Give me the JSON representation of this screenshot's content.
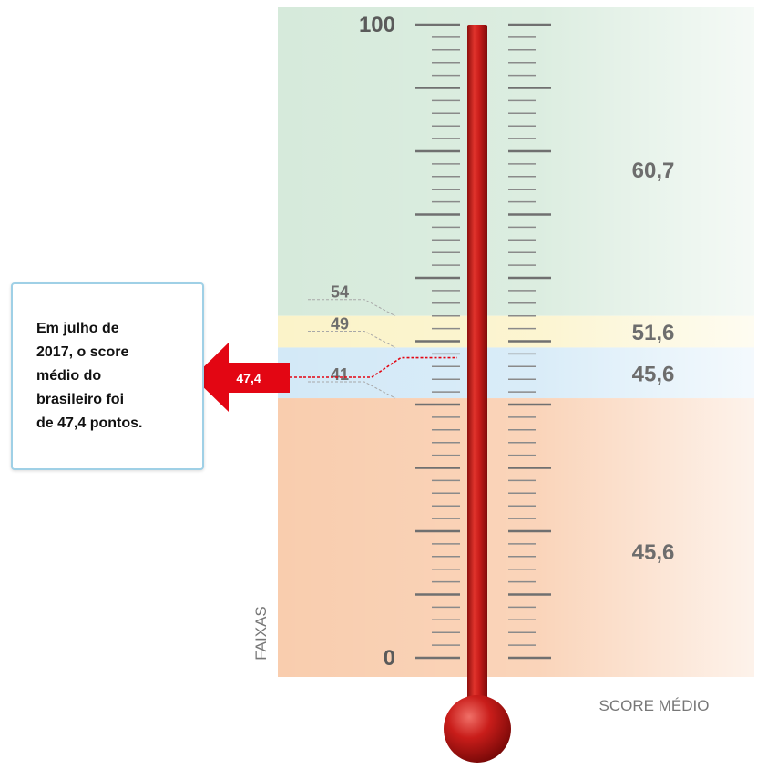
{
  "callout": {
    "text": "Em julho de\n2017, o score\nmédio do\nbrasileiro foi\nde 47,4 pontos."
  },
  "colors": {
    "band_green": "#d6eadb",
    "band_yellow": "#fbf3c9",
    "band_blue": "#d3e9f7",
    "band_orange": "#f9cdae",
    "thermometer_red": "#c91d1a",
    "marker_red": "#e30613",
    "label_gray": "#6d6d6d"
  },
  "chart_data": {
    "type": "thermometer",
    "scale": {
      "min": 0,
      "max": 100
    },
    "scale_labels": {
      "min": "0",
      "max": "100"
    },
    "xlabel": "FAIXAS",
    "ylabel": "SCORE MÉDIO",
    "bands": [
      {
        "from": 54,
        "to": 100,
        "score_medio": "60,7",
        "color": "#d6eadb"
      },
      {
        "from": 49,
        "to": 54,
        "score_medio": "51,6",
        "color": "#fbf3c9"
      },
      {
        "from": 41,
        "to": 49,
        "score_medio": "45,6",
        "color": "#d3e9f7"
      },
      {
        "from": 0,
        "to": 41,
        "score_medio": "45,6",
        "color": "#f9cdae"
      }
    ],
    "thresholds": [
      {
        "value": 54,
        "label": "54"
      },
      {
        "value": 49,
        "label": "49"
      },
      {
        "value": 41,
        "label": "41"
      }
    ],
    "marker": {
      "value": 47.4,
      "label": "47,4"
    }
  }
}
